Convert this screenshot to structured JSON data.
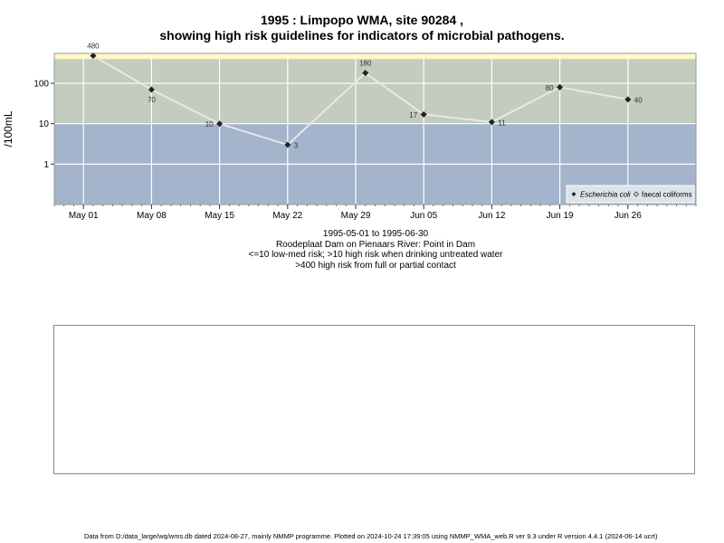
{
  "title_line1": "1995 : Limpopo WMA, site 90284 ,",
  "title_line2": "showing high risk guidelines for indicators of microbial pathogens.",
  "subtitle_lines": [
    "1995-05-01 to 1995-06-30",
    "Roodeplaat Dam on Pienaars River: Point in Dam",
    "<=10 low-med risk; >10 high risk when drinking untreated water",
    ">400 high risk from full or partial contact"
  ],
  "footer": "Data from D:/data_large/wq/wms.db dated 2024-08-27, mainly NMMP programme. Plotted on 2024-10-24 17:39:05 using NMMP_WMA_web.R ver 9.3 under R version 4.4.1 (2024-06-14 ucrt)",
  "colors": {
    "band_low": "#a3b4cc",
    "band_high": "#c3ccbe",
    "band_contact": "#fef8c4",
    "line": "#e8e8e8",
    "point": "#222222",
    "grid": "#ffffff"
  },
  "chart_data": {
    "type": "line",
    "title": "1995 : Limpopo WMA, site 90284 ,\nshowing high risk guidelines for indicators of microbial pathogens.",
    "ylabel": "/100mL",
    "xlabel": "",
    "y_scale": "log10",
    "ylim": [
      0.1,
      550
    ],
    "xlim": [
      "1995-04-28",
      "1995-07-03"
    ],
    "y_ticks": [
      1,
      10,
      100
    ],
    "y_tick_labels": [
      "1",
      "10",
      "100"
    ],
    "x_ticks": [
      "1995-05-01",
      "1995-05-08",
      "1995-05-15",
      "1995-05-22",
      "1995-05-29",
      "1995-06-05",
      "1995-06-12",
      "1995-06-19",
      "1995-06-26"
    ],
    "x_tick_labels": [
      "May 01",
      "May 08",
      "May 15",
      "May 22",
      "May 29",
      "Jun 05",
      "Jun 12",
      "Jun 19",
      "Jun 26"
    ],
    "grid": true,
    "risk_bands": [
      {
        "from": 0.1,
        "to": 10,
        "color": "#a3b4cc"
      },
      {
        "from": 10,
        "to": 400,
        "color": "#c3ccbe"
      },
      {
        "from": 400,
        "to": 550,
        "color": "#fef8c4"
      }
    ],
    "legend_position": "bottom-right",
    "series": [
      {
        "name": "Escherichia coli",
        "marker": "diamond-filled",
        "x": [
          "1995-05-02",
          "1995-05-08",
          "1995-05-15",
          "1995-05-22",
          "1995-05-30",
          "1995-06-05",
          "1995-06-12",
          "1995-06-19",
          "1995-06-26"
        ],
        "values": [
          480,
          70,
          10,
          3,
          180,
          17,
          11,
          80,
          40
        ],
        "labels": [
          "480",
          "70",
          "10",
          "3",
          "180",
          "17",
          "11",
          "80",
          "40"
        ]
      },
      {
        "name": "faecal coliforms",
        "marker": "diamond-open",
        "x": [],
        "values": [],
        "labels": []
      }
    ]
  }
}
